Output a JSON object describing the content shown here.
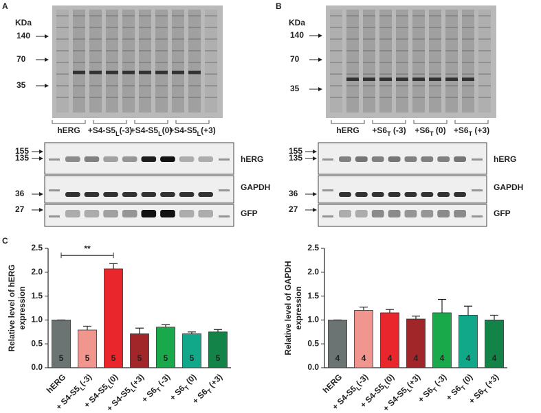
{
  "panels": [
    {
      "letter": "A",
      "kda": "KDa",
      "markers": [
        "140",
        "70",
        "35"
      ],
      "groups": [
        {
          "text": "hERG",
          "color": "#7a7f80"
        },
        {
          "text": "+S4-S5",
          "sub": "L",
          "suffix": "(-3)",
          "color": "#f1958f"
        },
        {
          "text": "+S4-S5",
          "sub": "L",
          "suffix": "(0)",
          "color": "#e8262c"
        },
        {
          "text": "+S4-S5",
          "sub": "L",
          "suffix": "(+3)",
          "color": "#a0262a"
        }
      ],
      "blot_markers": [
        "155",
        "135",
        "36",
        "27"
      ],
      "blot_labels": [
        "hERG",
        "GAPDH",
        "GFP"
      ]
    },
    {
      "letter": "B",
      "kda": "KDa",
      "markers": [
        "140",
        "70",
        "35"
      ],
      "groups": [
        {
          "text": "hERG",
          "color": "#7a7f80"
        },
        {
          "text": "+S6",
          "sub": "T",
          "suffix": " (-3)",
          "color": "#1aa94a"
        },
        {
          "text": "+S6",
          "sub": "T",
          "suffix": " (0)",
          "color": "#11a88a"
        },
        {
          "text": "+S6",
          "sub": "T",
          "suffix": " (+3)",
          "color": "#138347"
        }
      ],
      "blot_markers": [
        "155",
        "135",
        "36",
        "27"
      ],
      "blot_labels": [
        "hERG",
        "GAPDH",
        "GFP"
      ]
    }
  ],
  "chart_data": [
    {
      "type": "bar",
      "letter": "C",
      "ylabel": [
        "Relative level of hERG",
        "expression"
      ],
      "categories": [
        "hERG",
        {
          "text": "+ S4-S5",
          "sub": "L",
          "suffix": "(-3)"
        },
        {
          "text": "+ S4-S5",
          "sub": "L",
          "suffix": "(0)"
        },
        {
          "text": "+ S4-S5",
          "sub": "L",
          "suffix": "(+3)"
        },
        {
          "text": "+ S6",
          "sub": "T",
          "suffix": " (-3)"
        },
        {
          "text": "+ S6",
          "sub": "T",
          "suffix": " (0)"
        },
        {
          "text": "+ S6",
          "sub": "T",
          "suffix": " (+3)"
        }
      ],
      "values": [
        1.0,
        0.79,
        2.07,
        0.71,
        0.85,
        0.71,
        0.75
      ],
      "errors": [
        0,
        0.08,
        0.11,
        0.12,
        0.05,
        0.04,
        0.05
      ],
      "n_labels": [
        "5",
        "5",
        "5",
        "5",
        "5",
        "5",
        "5"
      ],
      "colors": [
        "#6b7373",
        "#f1958f",
        "#e8262c",
        "#a0262a",
        "#1aa94a",
        "#11a88a",
        "#138347"
      ],
      "annotation": "**",
      "ylim": [
        0,
        2.5
      ],
      "yticks": [
        {
          "value": 0,
          "label": "0.0"
        },
        {
          "value": 0.5,
          "label": "0.5"
        },
        {
          "value": 1,
          "label": "1.0"
        },
        {
          "value": 1.5,
          "label": "1.5"
        },
        {
          "value": 2,
          "label": "2.0"
        },
        {
          "value": 2.5,
          "label": "2.5"
        }
      ]
    },
    {
      "type": "bar",
      "ylabel": [
        "Relative level of GAPDH",
        "expression"
      ],
      "categories": [
        "hERG",
        {
          "text": "+ S4-S5",
          "sub": "L",
          "suffix": "(-3)"
        },
        {
          "text": "+ S4-S5",
          "sub": "L",
          "suffix": "(0)"
        },
        {
          "text": "+ S4-S5",
          "sub": "L",
          "suffix": "(+3)"
        },
        {
          "text": "+ S6",
          "sub": "T",
          "suffix": " (-3)"
        },
        {
          "text": "+ S6",
          "sub": "T",
          "suffix": " (0)"
        },
        {
          "text": "+ S6",
          "sub": "T",
          "suffix": " (+3)"
        }
      ],
      "values": [
        1.0,
        1.2,
        1.15,
        1.02,
        1.15,
        1.1,
        1.0
      ],
      "errors": [
        0,
        0.07,
        0.07,
        0.06,
        0.28,
        0.19,
        0.1
      ],
      "n_labels": [
        "4",
        "4",
        "4",
        "4",
        "4",
        "4",
        "4"
      ],
      "colors": [
        "#6b7373",
        "#f1958f",
        "#e8262c",
        "#a0262a",
        "#1aa94a",
        "#11a88a",
        "#138347"
      ],
      "ylim": [
        0,
        2.5
      ],
      "yticks": [
        {
          "value": 0,
          "label": "0.0"
        },
        {
          "value": 0.5,
          "label": "0.5"
        },
        {
          "value": 1,
          "label": "1.0"
        },
        {
          "value": 1.5,
          "label": "1.5"
        },
        {
          "value": 2,
          "label": "2.0"
        },
        {
          "value": 2.5,
          "label": "2.5"
        }
      ]
    }
  ]
}
